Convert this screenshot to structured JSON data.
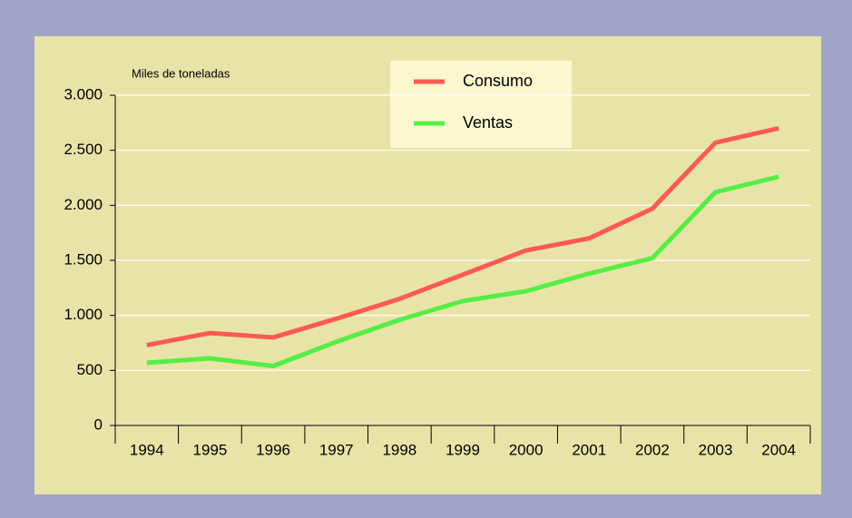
{
  "chart_data": {
    "type": "line",
    "y_axis_label": "Miles de toneladas",
    "categories": [
      "1994",
      "1995",
      "1996",
      "1997",
      "1998",
      "1999",
      "2000",
      "2001",
      "2002",
      "2003",
      "2004"
    ],
    "series": [
      {
        "name": "Consumo",
        "color": "#ff5a50",
        "values": [
          730,
          840,
          800,
          970,
          1150,
          1370,
          1590,
          1700,
          1970,
          2570,
          2700
        ]
      },
      {
        "name": "Ventas",
        "color": "#55ee44",
        "values": [
          570,
          610,
          540,
          760,
          960,
          1130,
          1220,
          1380,
          1520,
          2120,
          2260
        ]
      }
    ],
    "ylim": [
      0,
      3000
    ],
    "yticks": [
      0,
      500,
      {
        "value": 1000,
        "label": "1.000"
      },
      {
        "value": 1500,
        "label": "1.500"
      },
      {
        "value": 2000,
        "label": "2.000"
      },
      {
        "value": 2500,
        "label": "2.500"
      },
      {
        "value": 3000,
        "label": "3.000"
      }
    ],
    "grid": true,
    "legend": "top"
  }
}
